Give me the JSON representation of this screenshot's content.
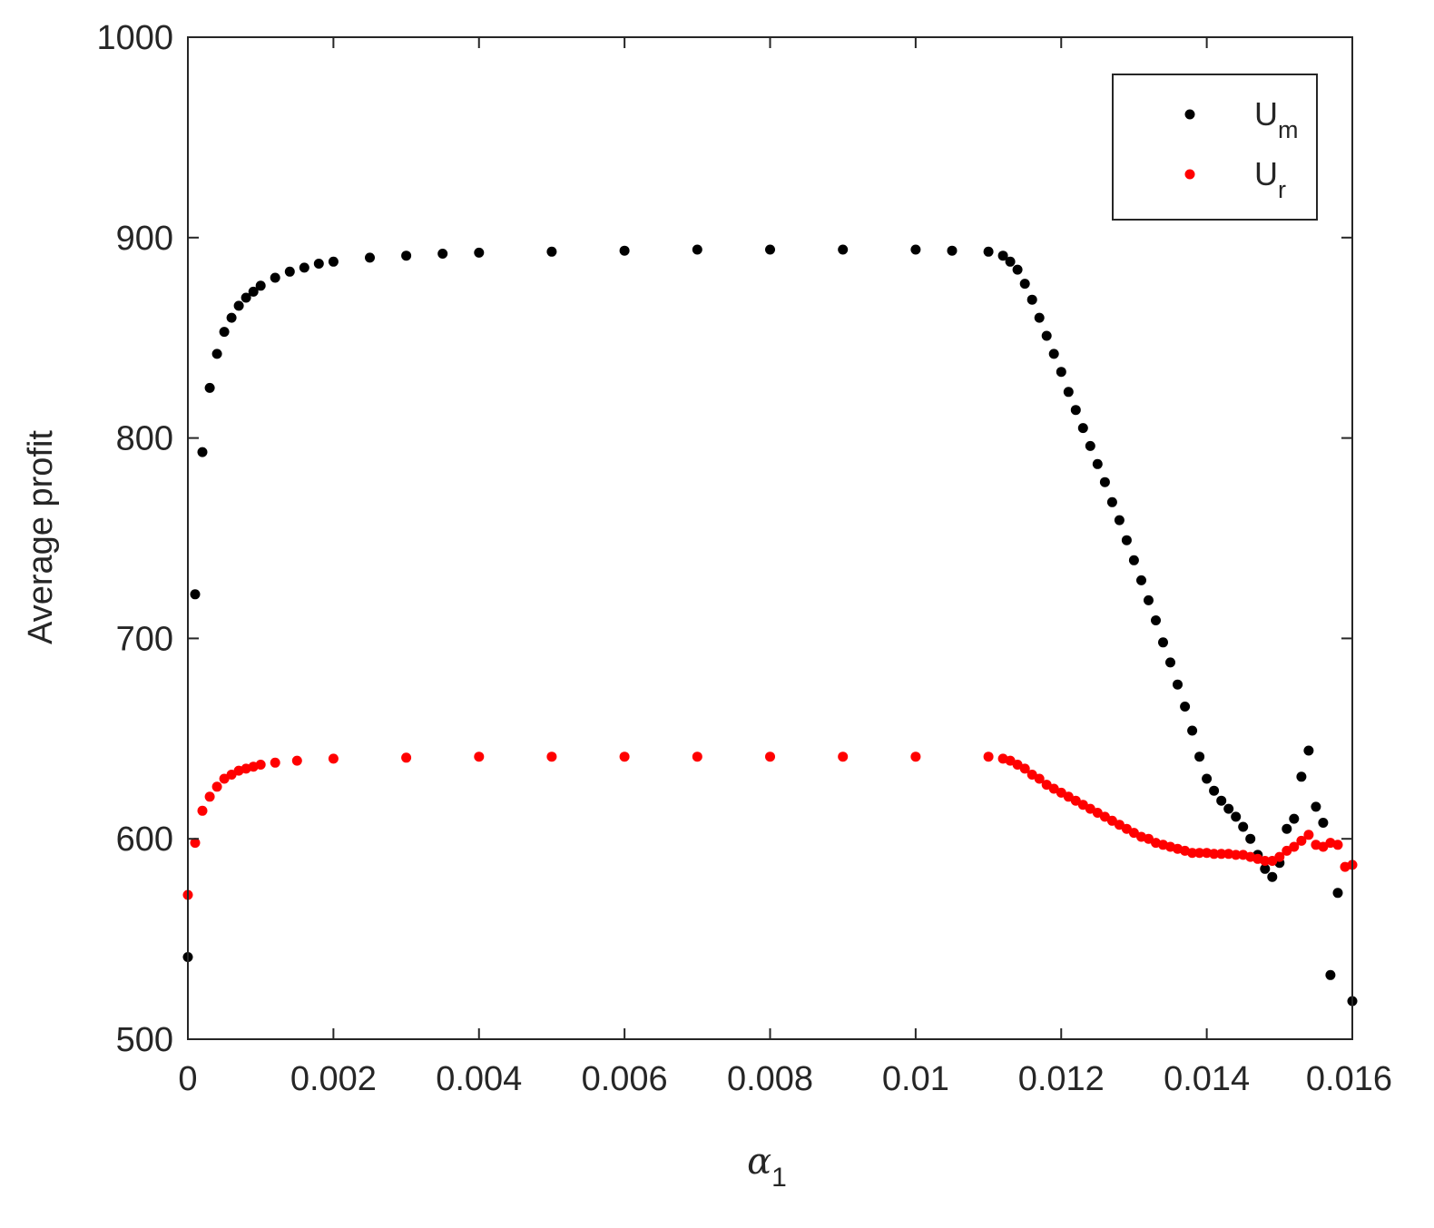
{
  "chart_data": {
    "type": "scatter",
    "title": "",
    "xlabel": "α",
    "xlabel_subscript": "1",
    "ylabel": "Average profit",
    "xlim": [
      0,
      0.016
    ],
    "ylim": [
      500,
      1000
    ],
    "xticks": [
      0,
      0.002,
      0.004,
      0.006,
      0.008,
      0.01,
      0.012,
      0.014,
      0.016
    ],
    "xtick_labels": [
      "0",
      "0.002",
      "0.004",
      "0.006",
      "0.008",
      "0.01",
      "0.012",
      "0.014",
      "0.016"
    ],
    "yticks": [
      500,
      600,
      700,
      800,
      900,
      1000
    ],
    "ytick_labels": [
      "500",
      "600",
      "700",
      "800",
      "900",
      "1000"
    ],
    "grid": false,
    "legend_position": "top-right",
    "series": [
      {
        "name": "U",
        "name_subscript": "m",
        "color": "#000000",
        "points": [
          [
            0.0,
            541
          ],
          [
            0.0001,
            722
          ],
          [
            0.0002,
            793
          ],
          [
            0.0003,
            825
          ],
          [
            0.0004,
            842
          ],
          [
            0.0005,
            853
          ],
          [
            0.0006,
            860
          ],
          [
            0.0007,
            866
          ],
          [
            0.0008,
            870
          ],
          [
            0.0009,
            873
          ],
          [
            0.001,
            876
          ],
          [
            0.0012,
            880
          ],
          [
            0.0014,
            883
          ],
          [
            0.0016,
            885
          ],
          [
            0.0018,
            887
          ],
          [
            0.002,
            888
          ],
          [
            0.0025,
            890
          ],
          [
            0.003,
            891
          ],
          [
            0.0035,
            892
          ],
          [
            0.004,
            892.5
          ],
          [
            0.005,
            893
          ],
          [
            0.006,
            893.5
          ],
          [
            0.007,
            894
          ],
          [
            0.008,
            894
          ],
          [
            0.009,
            894
          ],
          [
            0.01,
            894
          ],
          [
            0.0105,
            893.5
          ],
          [
            0.011,
            893
          ],
          [
            0.0112,
            891
          ],
          [
            0.0113,
            888
          ],
          [
            0.0114,
            884
          ],
          [
            0.0115,
            877
          ],
          [
            0.0116,
            869
          ],
          [
            0.0117,
            860
          ],
          [
            0.0118,
            851
          ],
          [
            0.0119,
            842
          ],
          [
            0.012,
            833
          ],
          [
            0.0121,
            823
          ],
          [
            0.0122,
            814
          ],
          [
            0.0123,
            805
          ],
          [
            0.0124,
            796
          ],
          [
            0.0125,
            787
          ],
          [
            0.0126,
            778
          ],
          [
            0.0127,
            768
          ],
          [
            0.0128,
            759
          ],
          [
            0.0129,
            749
          ],
          [
            0.013,
            739
          ],
          [
            0.0131,
            729
          ],
          [
            0.0132,
            719
          ],
          [
            0.0133,
            709
          ],
          [
            0.0134,
            698
          ],
          [
            0.0135,
            688
          ],
          [
            0.0136,
            677
          ],
          [
            0.0137,
            666
          ],
          [
            0.0138,
            654
          ],
          [
            0.0139,
            641
          ],
          [
            0.014,
            630
          ],
          [
            0.0141,
            624
          ],
          [
            0.0142,
            619
          ],
          [
            0.0143,
            615
          ],
          [
            0.0144,
            611
          ],
          [
            0.0145,
            606
          ],
          [
            0.0146,
            600
          ],
          [
            0.0147,
            592
          ],
          [
            0.0148,
            585
          ],
          [
            0.0149,
            581
          ],
          [
            0.015,
            588
          ],
          [
            0.0151,
            605
          ],
          [
            0.0152,
            610
          ],
          [
            0.0153,
            631
          ],
          [
            0.0154,
            644
          ],
          [
            0.0155,
            616
          ],
          [
            0.0156,
            608
          ],
          [
            0.0157,
            532
          ],
          [
            0.0158,
            573
          ],
          [
            0.016,
            519
          ]
        ]
      },
      {
        "name": "U",
        "name_subscript": "r",
        "color": "#ff0000",
        "points": [
          [
            0.0,
            572
          ],
          [
            0.0001,
            598
          ],
          [
            0.0002,
            614
          ],
          [
            0.0003,
            621
          ],
          [
            0.0004,
            626
          ],
          [
            0.0005,
            630
          ],
          [
            0.0006,
            632
          ],
          [
            0.0007,
            634
          ],
          [
            0.0008,
            635
          ],
          [
            0.0009,
            636
          ],
          [
            0.001,
            637
          ],
          [
            0.0012,
            638
          ],
          [
            0.0015,
            639
          ],
          [
            0.002,
            640
          ],
          [
            0.003,
            640.5
          ],
          [
            0.004,
            641
          ],
          [
            0.005,
            641
          ],
          [
            0.006,
            641
          ],
          [
            0.007,
            641
          ],
          [
            0.008,
            641
          ],
          [
            0.009,
            641
          ],
          [
            0.01,
            641
          ],
          [
            0.011,
            641
          ],
          [
            0.0112,
            640
          ],
          [
            0.0113,
            639
          ],
          [
            0.0114,
            637
          ],
          [
            0.0115,
            635
          ],
          [
            0.0116,
            632
          ],
          [
            0.0117,
            630
          ],
          [
            0.0118,
            627
          ],
          [
            0.0119,
            625
          ],
          [
            0.012,
            623
          ],
          [
            0.0121,
            621
          ],
          [
            0.0122,
            619
          ],
          [
            0.0123,
            617
          ],
          [
            0.0124,
            615
          ],
          [
            0.0125,
            613
          ],
          [
            0.0126,
            611
          ],
          [
            0.0127,
            609
          ],
          [
            0.0128,
            607
          ],
          [
            0.0129,
            605
          ],
          [
            0.013,
            603
          ],
          [
            0.0131,
            601
          ],
          [
            0.0132,
            600
          ],
          [
            0.0133,
            598
          ],
          [
            0.0134,
            597
          ],
          [
            0.0135,
            596
          ],
          [
            0.0136,
            595
          ],
          [
            0.0137,
            594
          ],
          [
            0.0138,
            593
          ],
          [
            0.0139,
            593
          ],
          [
            0.014,
            593
          ],
          [
            0.0141,
            592.5
          ],
          [
            0.0142,
            592.5
          ],
          [
            0.0143,
            592.5
          ],
          [
            0.0144,
            592
          ],
          [
            0.0145,
            592
          ],
          [
            0.0146,
            591
          ],
          [
            0.0147,
            590
          ],
          [
            0.0148,
            589
          ],
          [
            0.0149,
            589
          ],
          [
            0.015,
            591
          ],
          [
            0.0151,
            594
          ],
          [
            0.0152,
            596
          ],
          [
            0.0153,
            599
          ],
          [
            0.0154,
            602
          ],
          [
            0.0155,
            597
          ],
          [
            0.0156,
            596
          ],
          [
            0.0157,
            598
          ],
          [
            0.0158,
            597
          ],
          [
            0.0159,
            586
          ],
          [
            0.016,
            587
          ]
        ]
      }
    ]
  }
}
